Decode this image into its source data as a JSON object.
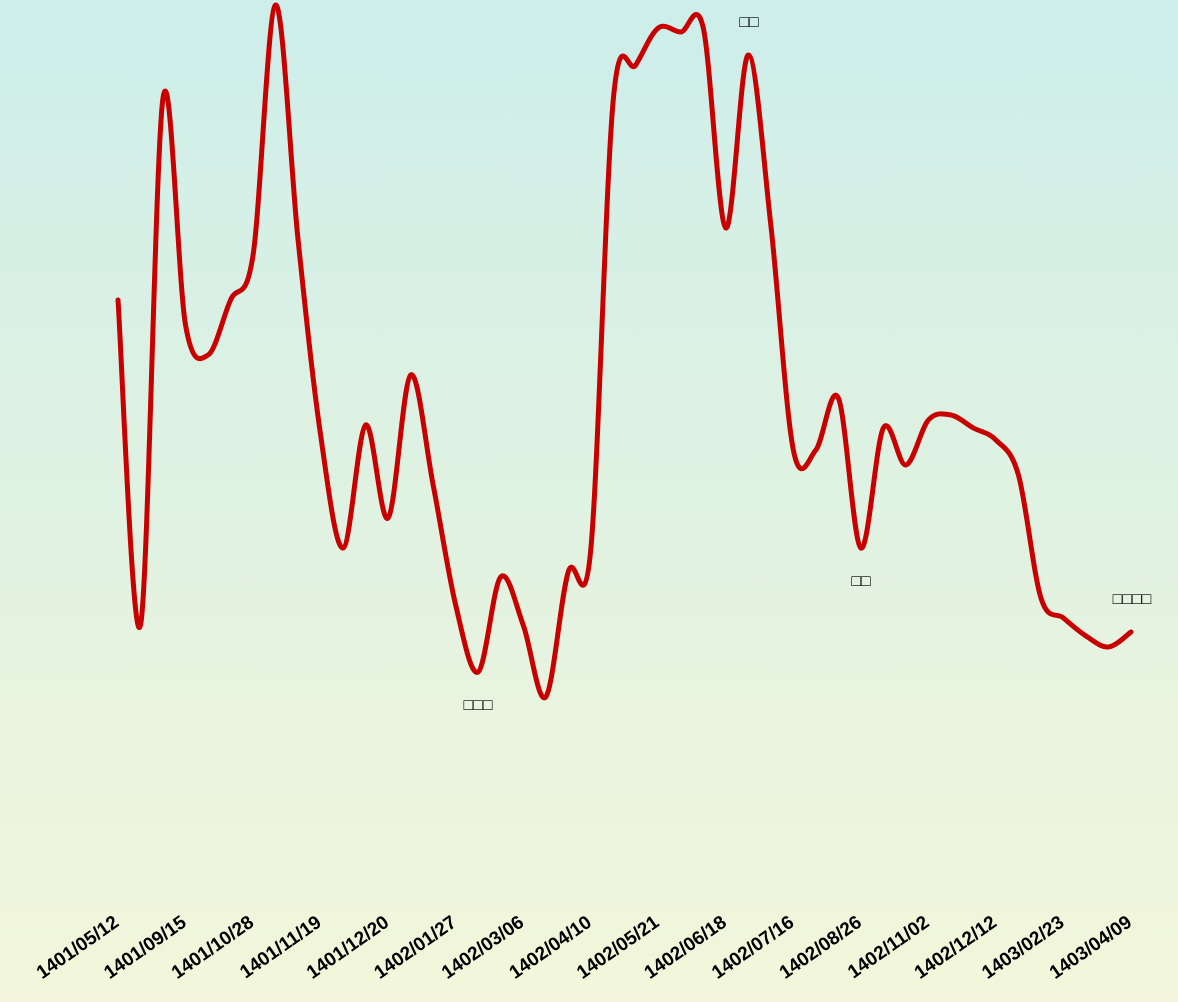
{
  "chart_data": {
    "type": "line",
    "categories": [
      "1401/05/12",
      null,
      null,
      "1401/09/15",
      null,
      null,
      "1401/10/28",
      null,
      null,
      "1401/11/19",
      null,
      null,
      "1401/12/20",
      null,
      null,
      "1402/01/27",
      null,
      null,
      "1402/03/06",
      null,
      null,
      "1402/04/10",
      null,
      null,
      "1402/05/21",
      null,
      null,
      "1402/06/18",
      null,
      null,
      "1402/07/16",
      null,
      null,
      "1402/08/26",
      null,
      null,
      "1402/11/02",
      null,
      null,
      "1402/12/12",
      null,
      null,
      "1403/02/23",
      null,
      null,
      "1403/04/09"
    ],
    "series": [
      {
        "color": "#c80000",
        "values": [
          702,
          377,
          904,
          677,
          647,
          702,
          747,
          997,
          762,
          567,
          454,
          577,
          484,
          627,
          517,
          397,
          330,
          425,
          377,
          305,
          430,
          452,
          902,
          937,
          974,
          970,
          974,
          774,
          947,
          777,
          552,
          552,
          604,
          454,
          574,
          537,
          582,
          587,
          574,
          562,
          527,
          404,
          384,
          366,
          355,
          370
        ]
      }
    ],
    "ylim": [
      0,
      1002
    ],
    "annotations": [
      "□□",
      "□□□",
      "□□",
      "□□□□"
    ]
  }
}
